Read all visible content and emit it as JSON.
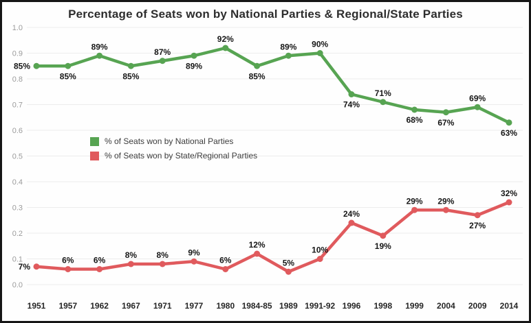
{
  "title": "Percentage of Seats won by National Parties & Regional/State Parties",
  "legend": {
    "items": [
      {
        "label": "% of Seats won by National Parties",
        "color": "#57a452"
      },
      {
        "label": "% of Seats won by State/Regional Parties",
        "color": "#e05a5d"
      }
    ]
  },
  "chart_data": {
    "type": "line",
    "title": "Percentage of Seats won by National Parties & Regional/State Parties",
    "categories": [
      "1951",
      "1957",
      "1962",
      "1967",
      "1971",
      "1977",
      "1980",
      "1984-85",
      "1989",
      "1991-92",
      "1996",
      "1998",
      "1999",
      "2004",
      "2009",
      "2014"
    ],
    "series": [
      {
        "name": "% of Seats won by National Parties",
        "color": "#57a452",
        "values": [
          85,
          85,
          89,
          85,
          87,
          89,
          92,
          85,
          89,
          90,
          74,
          71,
          68,
          67,
          69,
          63
        ],
        "labels": [
          "85%",
          "85%",
          "89%",
          "85%",
          "87%",
          "89%",
          "92%",
          "85%",
          "89%",
          "90%",
          "74%",
          "71%",
          "68%",
          "67%",
          "69%",
          "63%"
        ],
        "label_sides": [
          "left",
          "below",
          "above",
          "below",
          "above",
          "below",
          "above",
          "below",
          "above",
          "above",
          "below",
          "above",
          "below",
          "below",
          "above",
          "below"
        ]
      },
      {
        "name": "% of Seats won by State/Regional Parties",
        "color": "#e05a5d",
        "values": [
          7,
          6,
          6,
          8,
          8,
          9,
          6,
          12,
          5,
          10,
          24,
          19,
          29,
          29,
          27,
          32
        ],
        "labels": [
          "7%",
          "6%",
          "6%",
          "8%",
          "8%",
          "9%",
          "6%",
          "12%",
          "5%",
          "10%",
          "24%",
          "19%",
          "29%",
          "29%",
          "27%",
          "32%"
        ],
        "label_sides": [
          "left",
          "above",
          "above",
          "above",
          "above",
          "above",
          "above",
          "above",
          "above",
          "above",
          "above",
          "below",
          "above",
          "above",
          "below",
          "above"
        ]
      }
    ],
    "xlabel": "",
    "ylabel": "",
    "ylim": [
      0,
      1
    ],
    "ytick_step": 0.1,
    "yticks": [
      "0.0",
      "0.1",
      "0.2",
      "0.3",
      "0.4",
      "0.5",
      "0.6",
      "0.7",
      "0.8",
      "0.9",
      "1.0"
    ],
    "grid": "horizontal",
    "legend_position": "inside-upper-left"
  },
  "colors": {
    "background": "#fefefe",
    "frame": "#161616",
    "gridline": "#ececec",
    "ytick_label": "#9b9b9b",
    "xtick_label": "#262626",
    "data_label": "#161616"
  }
}
